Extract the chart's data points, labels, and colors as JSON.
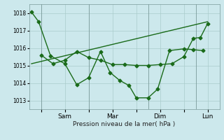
{
  "background_color": "#cce8ec",
  "grid_color": "#aacccc",
  "line_color": "#1a6b1a",
  "xlabel": "Pression niveau de la mer( hPa )",
  "ylim": [
    1012.5,
    1018.5
  ],
  "yticks": [
    1013,
    1014,
    1015,
    1016,
    1017,
    1018
  ],
  "xlim": [
    0,
    8.0
  ],
  "xtick_labels": [
    "",
    "Sam",
    "",
    "Mar",
    "",
    "Dim",
    "",
    "Lun"
  ],
  "xtick_positions": [
    0.5,
    1.5,
    2.5,
    3.5,
    4.5,
    5.5,
    6.5,
    7.5
  ],
  "vlines": [
    0.5,
    2.5,
    5.0,
    7.0
  ],
  "line1_x": [
    0.1,
    0.4,
    0.9,
    1.5,
    2.0,
    2.5,
    3.0,
    3.4,
    3.8,
    4.2,
    4.5,
    5.0,
    5.4,
    5.9,
    6.5,
    6.9,
    7.3
  ],
  "line1_y": [
    1018.05,
    1017.5,
    1015.55,
    1015.1,
    1013.9,
    1014.3,
    1015.8,
    1014.6,
    1014.15,
    1013.85,
    1013.15,
    1013.15,
    1013.65,
    1015.85,
    1015.95,
    1015.9,
    1015.85
  ],
  "line2_x": [
    0.5,
    1.0,
    1.5,
    2.0,
    2.5,
    3.0,
    3.5,
    4.0,
    4.5,
    5.0,
    5.5,
    6.0,
    6.5,
    6.9,
    7.2,
    7.5
  ],
  "line2_y": [
    1015.6,
    1015.1,
    1015.3,
    1015.8,
    1015.45,
    1015.3,
    1015.05,
    1015.05,
    1015.0,
    1015.0,
    1015.05,
    1015.1,
    1015.5,
    1016.55,
    1016.6,
    1017.4
  ],
  "line3_x": [
    0.1,
    7.5
  ],
  "line3_y": [
    1015.1,
    1017.5
  ],
  "marker": "D",
  "markersize": 2.5,
  "linewidth": 1.0
}
